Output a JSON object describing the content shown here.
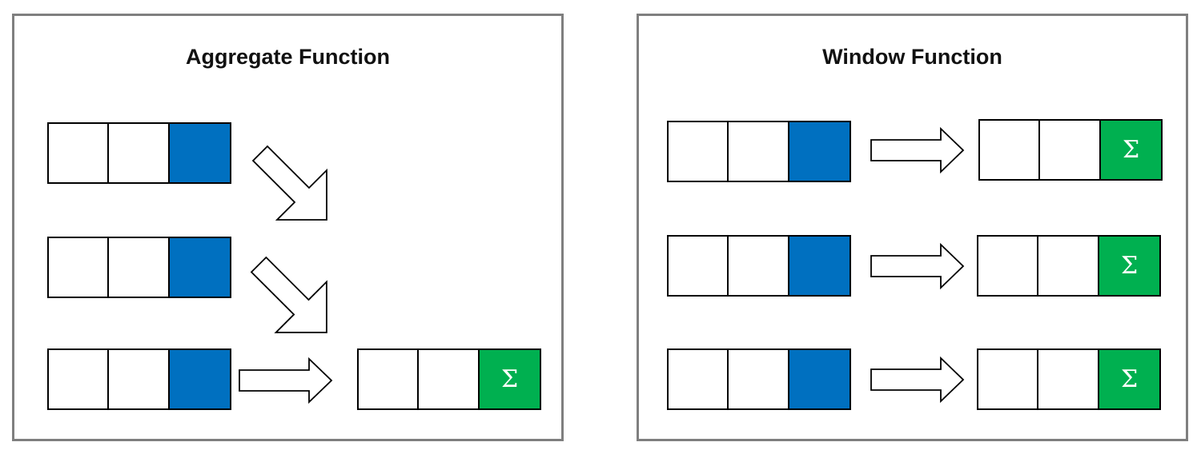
{
  "panels": {
    "aggregate": {
      "title": "Aggregate Function"
    },
    "window": {
      "title": "Window Function"
    }
  },
  "symbols": {
    "sum": "Σ"
  },
  "colors": {
    "highlight_cell": "#0070c0",
    "result_cell": "#00b050",
    "panel_border": "#7f7f7f"
  },
  "icons": {
    "arrow_right": "block-arrow-right-icon",
    "arrow_diagonal": "block-arrow-down-right-icon"
  }
}
